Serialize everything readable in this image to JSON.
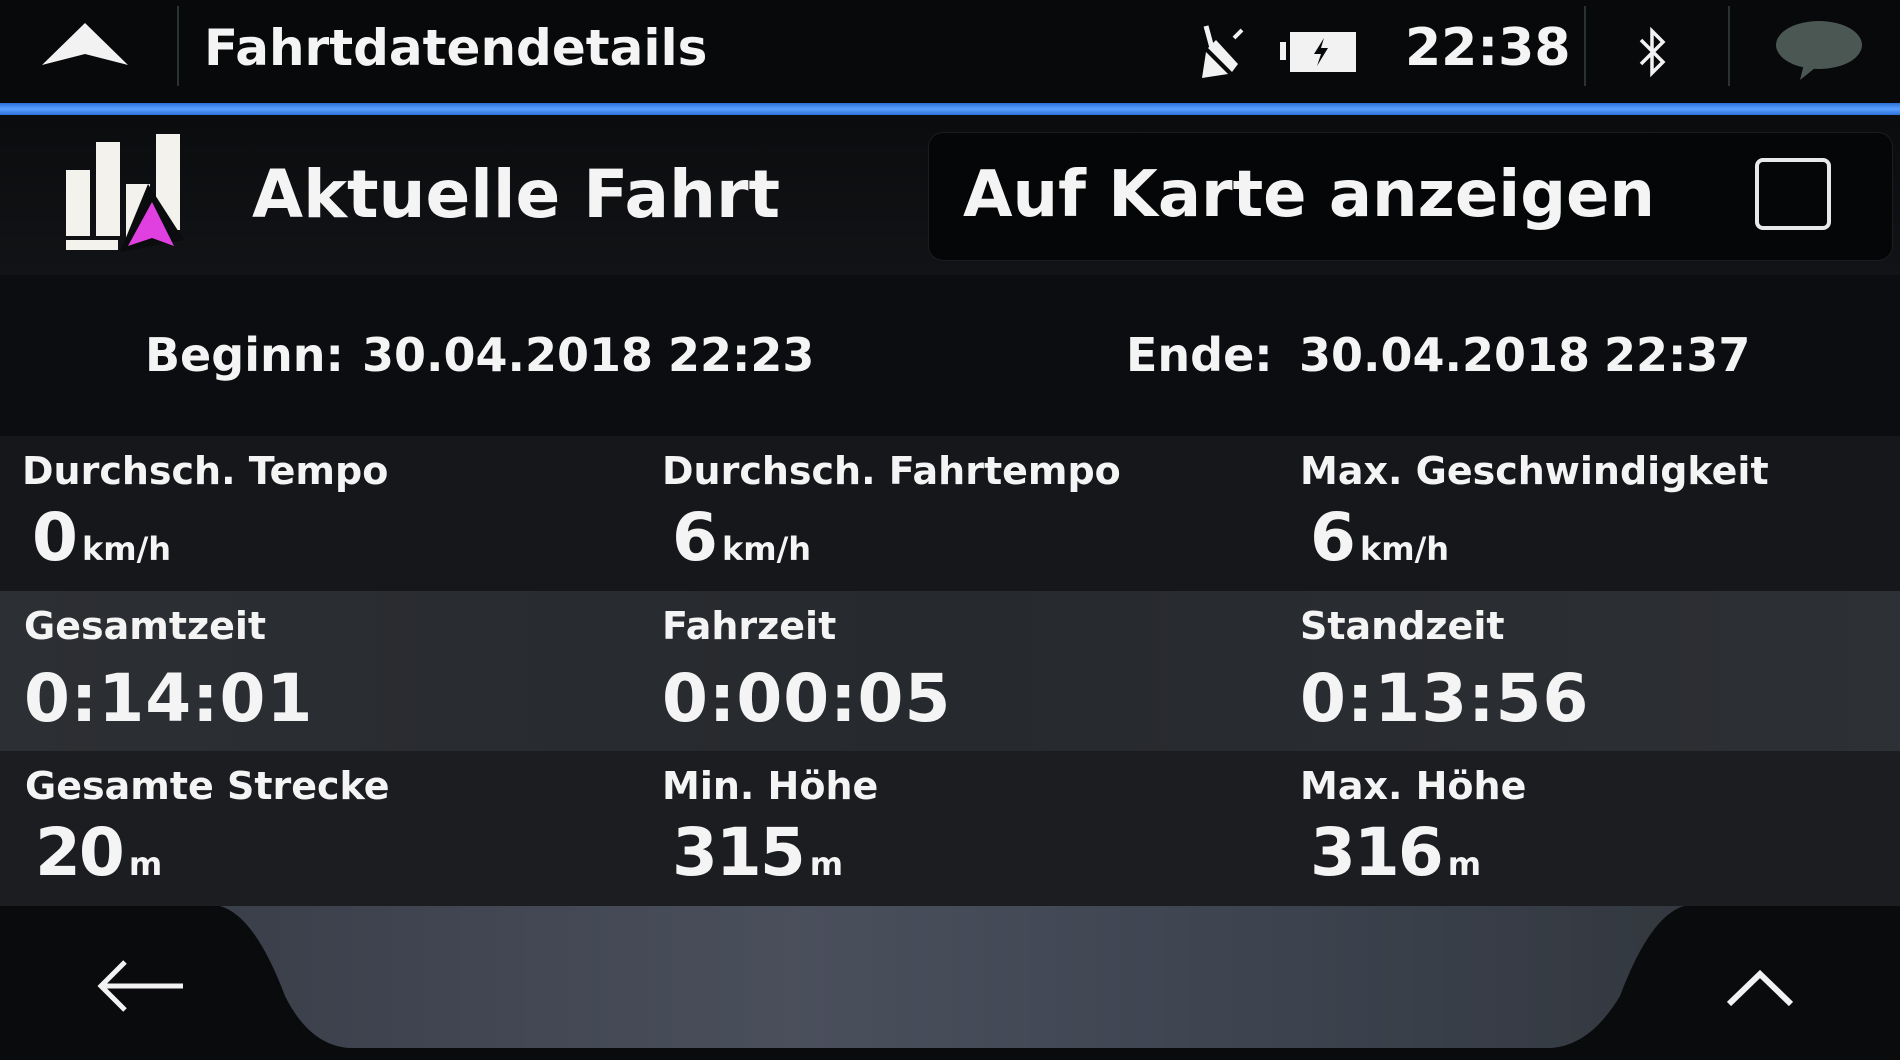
{
  "topbar": {
    "title": "Fahrtdatendetails",
    "clock": "22:38",
    "icons": [
      "home-up-arrow-icon",
      "gps-satellite-off-icon",
      "battery-charging-icon",
      "bluetooth-icon",
      "message-bubble-icon"
    ]
  },
  "trip": {
    "title": "Aktuelle Fahrt",
    "show_on_map_label": "Auf Karte anzeigen",
    "show_on_map_checked": false,
    "begin_label": "Beginn:",
    "begin_date": "30.04.2018",
    "begin_time": "22:23",
    "end_label": "Ende:",
    "end_date": "30.04.2018",
    "end_time": "22:37"
  },
  "stats": [
    [
      {
        "label": "Durchsch. Tempo",
        "value": "0",
        "unit": "km/h"
      },
      {
        "label": "Durchsch. Fahrtempo",
        "value": "6",
        "unit": "km/h"
      },
      {
        "label": "Max. Geschwindigkeit",
        "value": "6",
        "unit": "km/h"
      }
    ],
    [
      {
        "label": "Gesamtzeit",
        "value": "0:14:01"
      },
      {
        "label": "Fahrzeit",
        "value": "0:00:05"
      },
      {
        "label": "Standzeit",
        "value": "0:13:56"
      }
    ],
    [
      {
        "label": "Gesamte Strecke",
        "value": "20",
        "unit": "m"
      },
      {
        "label": "Min. Höhe",
        "value": "315",
        "unit": "m"
      },
      {
        "label": "Max. Höhe",
        "value": "316",
        "unit": "m"
      }
    ]
  ],
  "colors": {
    "accent": "#4a90f0",
    "arrow": "#e040e0"
  }
}
